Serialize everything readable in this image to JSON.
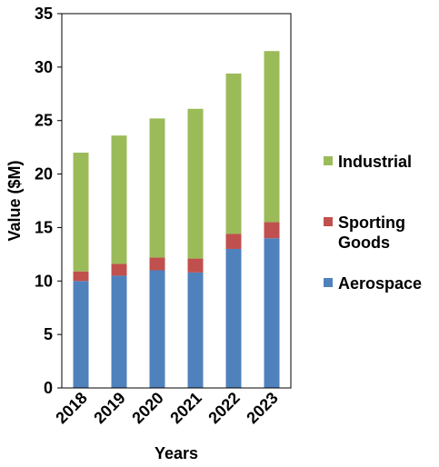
{
  "chart_data": {
    "type": "bar",
    "stacked": true,
    "title": "",
    "xlabel": "Years",
    "ylabel": "Value ($M)",
    "ylim": [
      0,
      35
    ],
    "yticks": [
      0,
      5,
      10,
      15,
      20,
      25,
      30,
      35
    ],
    "categories": [
      "2018",
      "2019",
      "2020",
      "2021",
      "2022",
      "2023"
    ],
    "series": [
      {
        "name": "Aerospace",
        "color": "#4F81BD",
        "values": [
          10.0,
          10.5,
          11.0,
          10.8,
          13.0,
          14.0
        ]
      },
      {
        "name": "Sporting Goods",
        "color": "#C0504D",
        "values": [
          0.9,
          1.1,
          1.2,
          1.3,
          1.4,
          1.5
        ]
      },
      {
        "name": "Industrial",
        "color": "#9BBB59",
        "values": [
          11.1,
          12.0,
          13.0,
          14.0,
          15.0,
          16.0
        ]
      }
    ],
    "legend": {
      "placement": "right",
      "order": [
        "Industrial",
        "Sporting Goods",
        "Aerospace"
      ],
      "labels": {
        "Industrial": [
          "Industrial"
        ],
        "Sporting Goods": [
          "Sporting",
          "Goods"
        ],
        "Aerospace": [
          "Aerospace"
        ]
      }
    },
    "grid": false
  }
}
